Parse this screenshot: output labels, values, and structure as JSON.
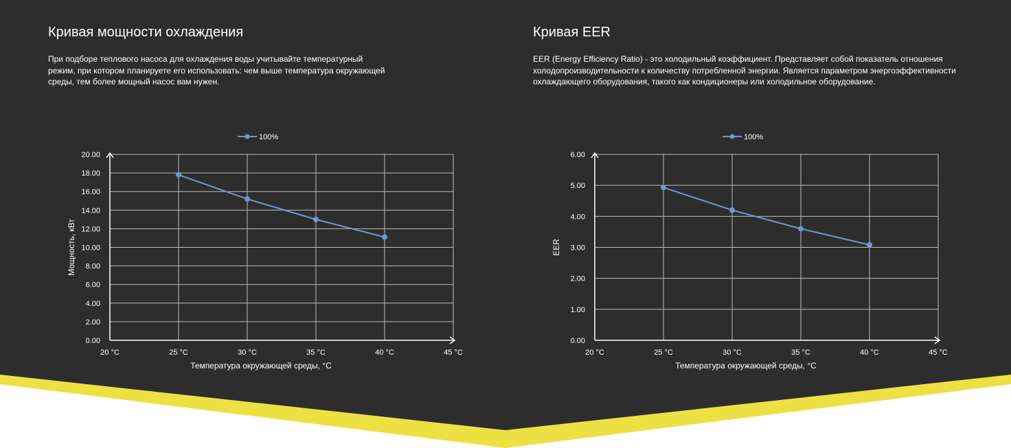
{
  "colors": {
    "background_dark": "#2e2d2e",
    "accent_yellow": "#ede043",
    "series_line": "#6f97cc",
    "grid": "#bdbdbd",
    "text": "#ffffff"
  },
  "sections": [
    {
      "title": "Кривая мощности охлаждения",
      "description": "При подборе теплового насоса для охлаждения воды учитывайте температурный режим, при котором планируете его использовать: чем выше температура окружающей среды, тем более мощный насос вам нужен."
    },
    {
      "title": "Кривая EER",
      "description": "EER (Energy Efficiency Ratio) - это холодильный коэффициент. Представляет собой показатель отношения холодопроизводительности к количеству потребленной энергии. Является параметром энергоэффективности охлаждающего оборудования, такого как кондиционеры или холодильное оборудование."
    }
  ],
  "chart_data": [
    {
      "type": "line",
      "title": "",
      "xlabel": "Температура окружающей среды, °C",
      "ylabel": "Мощность, кВт",
      "categories": [
        "20 °C",
        "25 °C",
        "30 °C",
        "35 °C",
        "40 °C",
        "45 °C"
      ],
      "x": [
        25,
        30,
        35,
        40
      ],
      "xlim": [
        20,
        45
      ],
      "ylim": [
        0,
        20
      ],
      "y_ticks": [
        "0.00",
        "2.00",
        "4.00",
        "6.00",
        "8.00",
        "10.00",
        "12.00",
        "14.00",
        "16.00",
        "18.00",
        "20.00"
      ],
      "legend_position": "top-center",
      "grid": true,
      "series": [
        {
          "name": "100%",
          "values": [
            17.8,
            15.2,
            13.0,
            11.1
          ]
        }
      ]
    },
    {
      "type": "line",
      "title": "",
      "xlabel": "Температура окружающей среды, °C",
      "ylabel": "EER",
      "categories": [
        "20 °C",
        "25 °C",
        "30 °C",
        "35 °C",
        "40 °C",
        "45 °C"
      ],
      "x": [
        25,
        30,
        35,
        40
      ],
      "xlim": [
        20,
        45
      ],
      "ylim": [
        0,
        6
      ],
      "y_ticks": [
        "0.00",
        "1.00",
        "2.00",
        "3.00",
        "4.00",
        "5.00",
        "6.00"
      ],
      "legend_position": "top-center",
      "grid": true,
      "series": [
        {
          "name": "100%",
          "values": [
            4.93,
            4.2,
            3.6,
            3.08
          ]
        }
      ]
    }
  ]
}
